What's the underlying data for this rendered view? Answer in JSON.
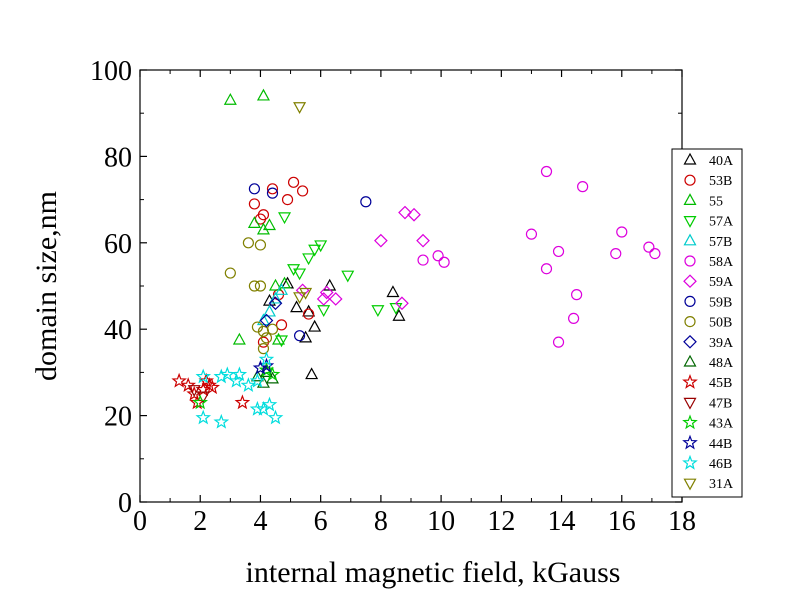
{
  "chart_data": {
    "type": "scatter",
    "xlabel": "internal magnetic field, kGauss",
    "ylabel": "domain size,nm",
    "xlim": [
      0,
      18
    ],
    "ylim": [
      0,
      100
    ],
    "xticks": [
      0,
      2,
      4,
      6,
      8,
      10,
      12,
      14,
      16,
      18
    ],
    "yticks": [
      0,
      20,
      40,
      60,
      80,
      100
    ],
    "grid": false,
    "legend_position": "right",
    "series": [
      {
        "name": "40A",
        "marker": "triangle-up",
        "color": "#000000",
        "points": [
          [
            4.3,
            46.5
          ],
          [
            4.9,
            50.5
          ],
          [
            5.2,
            45
          ],
          [
            5.5,
            38
          ],
          [
            5.6,
            44
          ],
          [
            5.8,
            40.5
          ],
          [
            6.3,
            50
          ],
          [
            5.7,
            29.5
          ],
          [
            8.4,
            48.5
          ],
          [
            8.6,
            43
          ]
        ]
      },
      {
        "name": "53B",
        "marker": "circle",
        "color": "#cc0000",
        "points": [
          [
            3.8,
            69
          ],
          [
            4.4,
            72.5
          ],
          [
            4.9,
            70
          ],
          [
            5.1,
            74
          ],
          [
            5.4,
            72
          ],
          [
            4.1,
            66.5
          ],
          [
            4.6,
            48
          ],
          [
            4.7,
            41
          ],
          [
            4.1,
            37
          ],
          [
            5.6,
            43.5
          ],
          [
            4.0,
            65.5
          ]
        ]
      },
      {
        "name": "55",
        "marker": "triangle-up",
        "color": "#00bb00",
        "points": [
          [
            3.0,
            93
          ],
          [
            4.1,
            94
          ],
          [
            3.3,
            37.5
          ],
          [
            3.8,
            64.5
          ],
          [
            4.1,
            63
          ],
          [
            4.3,
            64
          ],
          [
            4.5,
            50
          ],
          [
            4.8,
            50.5
          ],
          [
            4.6,
            37.5
          ]
        ]
      },
      {
        "name": "57A",
        "marker": "triangle-down",
        "color": "#00cc00",
        "points": [
          [
            4.8,
            66
          ],
          [
            5.6,
            56.5
          ],
          [
            5.8,
            58.5
          ],
          [
            6.0,
            59.5
          ],
          [
            5.3,
            53
          ],
          [
            6.9,
            52.5
          ],
          [
            6.1,
            44.5
          ],
          [
            7.9,
            44.5
          ],
          [
            8.5,
            45
          ],
          [
            4.7,
            37.5
          ],
          [
            5.1,
            54
          ]
        ]
      },
      {
        "name": "57B",
        "marker": "triangle-up",
        "color": "#00cccc",
        "points": [
          [
            4.5,
            47
          ],
          [
            4.7,
            49
          ],
          [
            4.3,
            44
          ],
          [
            4.1,
            42
          ]
        ]
      },
      {
        "name": "58A",
        "marker": "circle",
        "color": "#dd00dd",
        "points": [
          [
            13.5,
            76.5
          ],
          [
            14.7,
            73
          ],
          [
            13.0,
            62
          ],
          [
            13.9,
            58
          ],
          [
            15.8,
            57.5
          ],
          [
            16.0,
            62.5
          ],
          [
            16.9,
            59
          ],
          [
            17.1,
            57.5
          ],
          [
            13.5,
            54
          ],
          [
            14.5,
            48
          ],
          [
            14.4,
            42.5
          ],
          [
            13.9,
            37
          ],
          [
            9.4,
            56
          ],
          [
            9.9,
            57
          ],
          [
            10.1,
            55.5
          ]
        ]
      },
      {
        "name": "59A",
        "marker": "diamond",
        "color": "#dd00dd",
        "points": [
          [
            8.8,
            67
          ],
          [
            9.1,
            66.5
          ],
          [
            8.0,
            60.5
          ],
          [
            9.4,
            60.5
          ],
          [
            8.7,
            46
          ],
          [
            6.1,
            47
          ],
          [
            6.5,
            47
          ],
          [
            6.2,
            48.5
          ],
          [
            5.4,
            49
          ]
        ]
      },
      {
        "name": "59B",
        "marker": "circle",
        "color": "#000099",
        "points": [
          [
            3.8,
            72.5
          ],
          [
            4.4,
            71.5
          ],
          [
            7.5,
            69.5
          ],
          [
            5.3,
            38.5
          ]
        ]
      },
      {
        "name": "50B",
        "marker": "circle",
        "color": "#808000",
        "points": [
          [
            3.0,
            53
          ],
          [
            3.6,
            60
          ],
          [
            4.0,
            59.5
          ],
          [
            3.8,
            50
          ],
          [
            4.0,
            50
          ],
          [
            3.9,
            40.5
          ],
          [
            4.1,
            39.5
          ],
          [
            4.2,
            38
          ],
          [
            4.1,
            35.5
          ],
          [
            4.4,
            40
          ]
        ]
      },
      {
        "name": "39A",
        "marker": "diamond",
        "color": "#000099",
        "points": [
          [
            4.5,
            46
          ],
          [
            4.2,
            42
          ]
        ]
      },
      {
        "name": "48A",
        "marker": "triangle-up",
        "color": "#006600",
        "points": [
          [
            3.9,
            29
          ],
          [
            4.1,
            27.5
          ],
          [
            4.4,
            28.5
          ],
          [
            4.2,
            30
          ]
        ]
      },
      {
        "name": "45B",
        "marker": "star",
        "color": "#cc0000",
        "points": [
          [
            1.3,
            28
          ],
          [
            1.6,
            27
          ],
          [
            1.8,
            25
          ],
          [
            1.9,
            23
          ],
          [
            2.1,
            26
          ],
          [
            2.3,
            27
          ],
          [
            2.4,
            26.5
          ],
          [
            2.2,
            28
          ],
          [
            3.4,
            23
          ]
        ]
      },
      {
        "name": "47B",
        "marker": "triangle-down",
        "color": "#990000",
        "points": [
          [
            1.8,
            26
          ],
          [
            2.1,
            24.5
          ]
        ]
      },
      {
        "name": "43A",
        "marker": "star",
        "color": "#00cc00",
        "points": [
          [
            2.0,
            23
          ],
          [
            4.2,
            30.5
          ],
          [
            4.4,
            29.5
          ]
        ]
      },
      {
        "name": "44B",
        "marker": "star",
        "color": "#000099",
        "points": [
          [
            4.0,
            31
          ],
          [
            4.2,
            31.5
          ]
        ]
      },
      {
        "name": "46B",
        "marker": "star",
        "color": "#00dddd",
        "points": [
          [
            2.1,
            29
          ],
          [
            2.7,
            29
          ],
          [
            2.9,
            29.5
          ],
          [
            3.3,
            29.5
          ],
          [
            3.6,
            27
          ],
          [
            3.9,
            28
          ],
          [
            4.2,
            33
          ],
          [
            2.1,
            19.5
          ],
          [
            2.7,
            18.5
          ],
          [
            3.9,
            21.5
          ],
          [
            4.1,
            21.5
          ],
          [
            4.3,
            22.5
          ],
          [
            4.5,
            19.5
          ],
          [
            3.2,
            28
          ]
        ]
      },
      {
        "name": "31A",
        "marker": "triangle-down",
        "color": "#808000",
        "points": [
          [
            5.3,
            91.5
          ],
          [
            5.5,
            48.5
          ],
          [
            5.3,
            47.5
          ]
        ]
      }
    ]
  }
}
